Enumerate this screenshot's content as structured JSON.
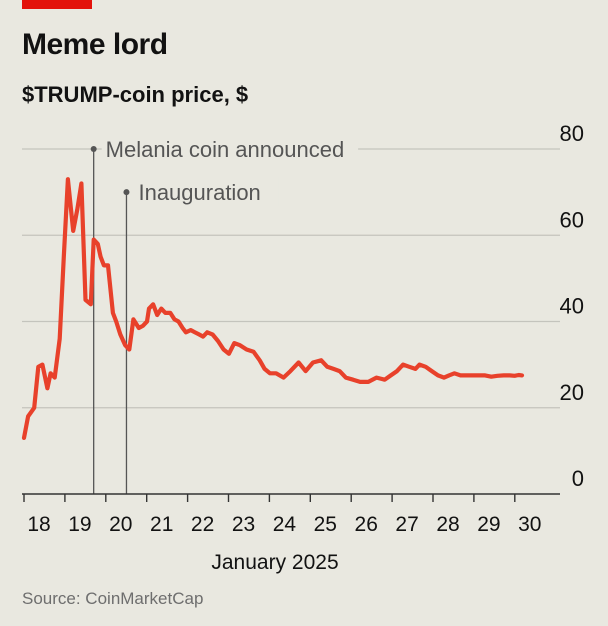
{
  "header": {
    "title": "Meme lord",
    "subtitle": "$TRUMP-coin price, $"
  },
  "source": "Source: CoinMarketCap",
  "colors": {
    "line": "#e8412b",
    "background": "#e9e8e0",
    "grid": "#c4c4bd",
    "axis": "#333333",
    "brand": "#e3120b"
  },
  "chart_data": {
    "type": "line",
    "title": "Meme lord",
    "subtitle": "$TRUMP-coin price, $",
    "xlabel": "January 2025",
    "ylabel": "",
    "xlim": [
      17.85,
      30.0
    ],
    "ylim": [
      0,
      80
    ],
    "yaxis_side": "right",
    "grid": "horizontal",
    "x_ticks": [
      "18",
      "19",
      "20",
      "21",
      "22",
      "23",
      "24",
      "25",
      "26",
      "27",
      "28",
      "29",
      "30"
    ],
    "y_ticks": [
      "0",
      "20",
      "40",
      "60",
      "80"
    ],
    "series": [
      {
        "x": [
          17.85,
          17.95,
          18.1,
          18.2,
          18.3,
          18.42,
          18.5,
          18.6,
          18.72,
          18.82,
          18.92,
          19.05,
          19.15,
          19.25,
          19.35,
          19.48,
          19.55,
          19.65,
          19.72,
          19.8,
          19.9,
          20.02,
          20.1,
          20.2,
          20.32,
          20.42,
          20.52,
          20.65,
          20.75,
          20.85,
          20.9,
          21.0,
          21.1,
          21.2,
          21.3,
          21.42,
          21.52,
          21.62,
          21.72,
          21.8,
          21.92,
          22.02,
          22.12,
          22.22,
          22.32,
          22.45,
          22.58,
          22.72,
          22.85,
          22.98,
          23.12,
          23.28,
          23.45,
          23.6,
          23.72,
          23.85,
          24.0,
          24.18,
          24.35,
          24.55,
          24.72,
          24.9,
          25.1,
          25.25,
          25.4,
          25.55,
          25.7,
          25.88,
          26.05,
          26.25,
          26.45,
          26.65,
          26.8,
          26.95,
          27.1,
          27.25,
          27.4,
          27.5,
          27.65,
          27.8,
          27.95,
          28.1,
          28.22,
          28.35,
          28.5,
          28.65,
          28.8,
          28.95,
          29.1,
          29.25,
          29.4,
          29.55,
          29.7,
          29.82,
          29.92,
          30.0
        ],
        "y": [
          13,
          18,
          20,
          29.5,
          30,
          24.5,
          28,
          27,
          36,
          55,
          73,
          61,
          66,
          72,
          45,
          44,
          59,
          58,
          55,
          53,
          53,
          42,
          40,
          37,
          34.5,
          33.5,
          40.5,
          38.5,
          39,
          40,
          43,
          44,
          41.5,
          43,
          42,
          42,
          40.5,
          40,
          38.5,
          37.5,
          38,
          37.5,
          37,
          36.5,
          37.5,
          37,
          35.5,
          33.5,
          32.5,
          35,
          34.5,
          33.5,
          33,
          31,
          29,
          28,
          28,
          27,
          28.5,
          30.5,
          28.5,
          30.5,
          31,
          29.5,
          29,
          28.5,
          27,
          26.5,
          26,
          26,
          27,
          26.5,
          27.5,
          28.5,
          30,
          29.5,
          29,
          30,
          29.5,
          28.5,
          27.5,
          27,
          27.5,
          28,
          27.5,
          27.5,
          27.5,
          27.5,
          27.5,
          27.2,
          27.4,
          27.5,
          27.5,
          27.4,
          27.6,
          27.5
        ]
      }
    ],
    "annotations": [
      {
        "label": "Melania coin announced",
        "x": 19.55,
        "y": 80
      },
      {
        "label": "Inauguration",
        "x": 20.35,
        "y": 70
      }
    ]
  }
}
